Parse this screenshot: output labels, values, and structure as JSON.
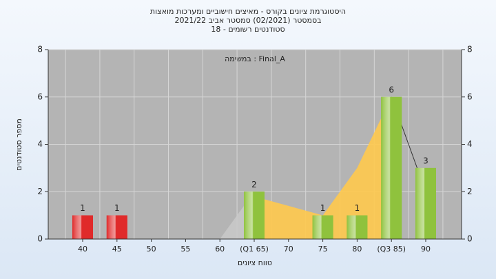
{
  "chart_data": {
    "type": "bar",
    "title": "היסטוגרמת ציונים בקורס - מאיצים חישוביים ומערכות מואצות",
    "subtitle": "בסמסטר  (02/2021)  סמסטר אביב 2021/22",
    "subtitle2": "סטודנטים רשומים - 18",
    "annotation": "במשימה : Final_A",
    "x_label": "טווח ציונים",
    "y_label": "מספר סטודנטים",
    "categories": [
      "40",
      "45",
      "50",
      "55",
      "60",
      "(Q1 65)",
      "70",
      "75",
      "80",
      "(Q3 85)",
      "90"
    ],
    "values": [
      1,
      1,
      0,
      0,
      0,
      2,
      0,
      1,
      1,
      6,
      3
    ],
    "colors": [
      "#e02a2a",
      "#e02a2a",
      "#8fc23d",
      "#8fc23d",
      "#8fc23d",
      "#8fc23d",
      "#8fc23d",
      "#8fc23d",
      "#8fc23d",
      "#8fc23d",
      "#8fc23d"
    ],
    "area": {
      "color": "#ffc94d",
      "values": [
        null,
        null,
        null,
        null,
        null,
        1.8,
        1.4,
        1,
        3,
        6,
        null
      ]
    },
    "area2": {
      "color": "#c8c8c8",
      "values": [
        null,
        null,
        null,
        null,
        0,
        2,
        null,
        null,
        null,
        null,
        null
      ]
    },
    "line": {
      "color": "#333333",
      "values": [
        null,
        null,
        null,
        null,
        null,
        null,
        null,
        null,
        null,
        6,
        2
      ]
    },
    "ylim": [
      0,
      8
    ],
    "yticks": [
      0,
      2,
      4,
      6,
      8
    ],
    "y2lim": [
      0,
      8
    ],
    "y2ticks": [
      0,
      2,
      4,
      6,
      8
    ],
    "grid": true
  }
}
